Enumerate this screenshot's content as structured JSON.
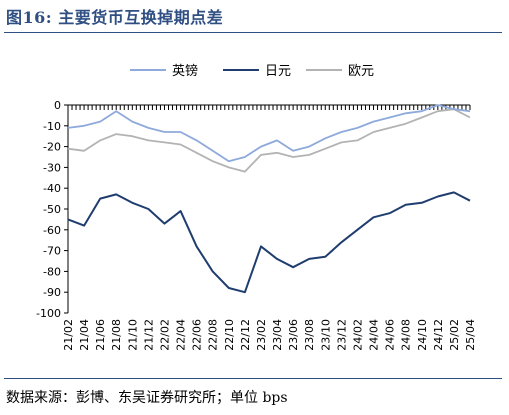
{
  "figure": {
    "title": "图16:  主要货币互换掉期点差",
    "source": "数据来源：彭博、东吴证券研究所；单位 bps"
  },
  "colors": {
    "gbp": "#8ea9db",
    "jpy": "#1f3d6e",
    "eur": "#b3b3b3",
    "title": "#2f4f83"
  },
  "chart_data": {
    "type": "line",
    "title": "",
    "xlabel": "",
    "ylabel": "",
    "ylim": [
      -100,
      0
    ],
    "yticks": [
      0,
      -10,
      -20,
      -30,
      -40,
      -50,
      -60,
      -70,
      -80,
      -90,
      -100
    ],
    "categories": [
      "21/02",
      "21/04",
      "21/06",
      "21/08",
      "21/10",
      "21/12",
      "22/02",
      "22/04",
      "22/06",
      "22/08",
      "22/10",
      "22/12",
      "23/02",
      "23/04",
      "23/06",
      "23/08",
      "23/10",
      "23/12",
      "24/02",
      "24/04",
      "24/06",
      "24/08",
      "24/10",
      "24/12",
      "25/02",
      "25/04"
    ],
    "legend_position": "top",
    "grid": false,
    "series": [
      {
        "name": "英镑",
        "color_key": "gbp",
        "values": [
          -11,
          -10,
          -8,
          -3,
          -8,
          -11,
          -13,
          -13,
          -17,
          -22,
          -27,
          -25,
          -20,
          -17,
          -22,
          -20,
          -16,
          -13,
          -11,
          -8,
          -6,
          -4,
          -3,
          0,
          -2,
          -3
        ]
      },
      {
        "name": "日元",
        "color_key": "jpy",
        "values": [
          -55,
          -58,
          -45,
          -43,
          -47,
          -50,
          -57,
          -51,
          -68,
          -80,
          -88,
          -90,
          -68,
          -74,
          -78,
          -74,
          -73,
          -66,
          -60,
          -54,
          -52,
          -48,
          -47,
          -44,
          -42,
          -46
        ]
      },
      {
        "name": "欧元",
        "color_key": "eur",
        "values": [
          -21,
          -22,
          -17,
          -14,
          -15,
          -17,
          -18,
          -19,
          -23,
          -27,
          -30,
          -32,
          -24,
          -23,
          -25,
          -24,
          -21,
          -18,
          -17,
          -13,
          -11,
          -9,
          -6,
          -3,
          -2,
          -6
        ]
      }
    ]
  }
}
